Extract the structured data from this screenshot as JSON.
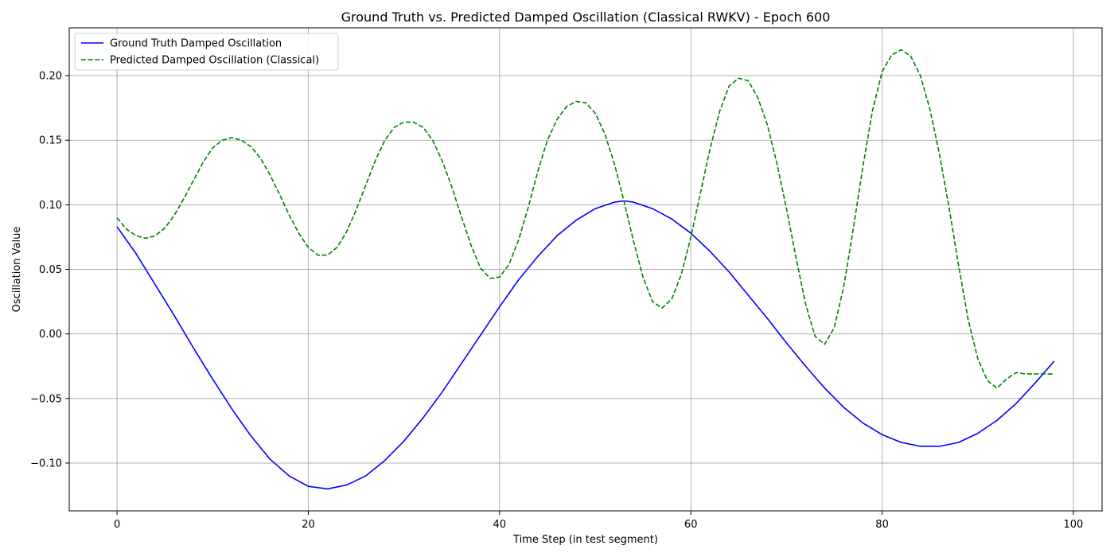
{
  "chart_data": {
    "type": "line",
    "title": "Ground Truth vs. Predicted Damped Oscillation (Classical RWKV) - Epoch 600",
    "xlabel": "Time Step (in test segment)",
    "ylabel": "Oscillation Value",
    "xlim": [
      -5,
      103
    ],
    "ylim": [
      -0.137,
      0.237
    ],
    "xticks": [
      0,
      20,
      40,
      60,
      80,
      100
    ],
    "xtick_labels": [
      "0",
      "20",
      "40",
      "60",
      "80",
      "100"
    ],
    "yticks": [
      -0.1,
      -0.05,
      0.0,
      0.05,
      0.1,
      0.15,
      0.2
    ],
    "ytick_labels": [
      "−0.10",
      "−0.05",
      "0.00",
      "0.05",
      "0.10",
      "0.15",
      "0.20"
    ],
    "grid": true,
    "legend_position": "top-left",
    "series": [
      {
        "name": "Ground Truth Damped Oscillation",
        "color": "#0000ff",
        "style": "solid",
        "x": [
          0,
          2,
          4,
          6,
          8,
          10,
          12,
          14,
          16,
          18,
          20,
          22,
          24,
          26,
          28,
          30,
          32,
          34,
          36,
          38,
          40,
          42,
          44,
          46,
          48,
          50,
          52,
          53,
          54,
          56,
          58,
          60,
          62,
          64,
          66,
          68,
          70,
          72,
          74,
          76,
          78,
          80,
          82,
          84,
          85,
          86,
          88,
          90,
          92,
          94,
          96,
          98
        ],
        "y": [
          0.083,
          0.062,
          0.038,
          0.014,
          -0.011,
          -0.035,
          -0.058,
          -0.079,
          -0.097,
          -0.11,
          -0.118,
          -0.12,
          -0.117,
          -0.11,
          -0.098,
          -0.083,
          -0.065,
          -0.045,
          -0.023,
          -0.001,
          0.021,
          0.042,
          0.06,
          0.076,
          0.088,
          0.097,
          0.102,
          0.103,
          0.102,
          0.097,
          0.089,
          0.078,
          0.064,
          0.048,
          0.03,
          0.012,
          -0.007,
          -0.025,
          -0.042,
          -0.057,
          -0.069,
          -0.078,
          -0.084,
          -0.087,
          -0.087,
          -0.087,
          -0.084,
          -0.077,
          -0.067,
          -0.054,
          -0.038,
          -0.021
        ]
      },
      {
        "name": "Predicted Damped Oscillation (Classical)",
        "color": "#008000",
        "style": "dashed",
        "x": [
          0,
          1,
          2,
          3,
          4,
          5,
          6,
          7,
          8,
          9,
          10,
          11,
          12,
          13,
          14,
          15,
          16,
          17,
          18,
          19,
          20,
          21,
          22,
          23,
          24,
          25,
          26,
          27,
          28,
          29,
          30,
          31,
          32,
          33,
          34,
          35,
          36,
          37,
          38,
          39,
          40,
          41,
          42,
          43,
          44,
          45,
          46,
          47,
          48,
          49,
          50,
          51,
          52,
          53,
          54,
          55,
          56,
          57,
          58,
          59,
          60,
          61,
          62,
          63,
          64,
          65,
          66,
          67,
          68,
          69,
          70,
          71,
          72,
          73,
          74,
          75,
          76,
          77,
          78,
          79,
          80,
          81,
          82,
          83,
          84,
          85,
          86,
          87,
          88,
          89,
          90,
          91,
          92,
          93,
          94,
          95,
          96,
          97,
          98
        ],
        "y": [
          0.09,
          0.081,
          0.076,
          0.074,
          0.076,
          0.082,
          0.092,
          0.105,
          0.119,
          0.133,
          0.144,
          0.15,
          0.152,
          0.15,
          0.145,
          0.136,
          0.123,
          0.108,
          0.092,
          0.078,
          0.067,
          0.061,
          0.061,
          0.067,
          0.079,
          0.096,
          0.115,
          0.134,
          0.15,
          0.16,
          0.164,
          0.164,
          0.16,
          0.15,
          0.134,
          0.114,
          0.091,
          0.069,
          0.051,
          0.043,
          0.044,
          0.054,
          0.073,
          0.098,
          0.126,
          0.15,
          0.166,
          0.176,
          0.18,
          0.179,
          0.171,
          0.155,
          0.132,
          0.103,
          0.072,
          0.044,
          0.025,
          0.02,
          0.027,
          0.046,
          0.075,
          0.109,
          0.143,
          0.172,
          0.192,
          0.198,
          0.196,
          0.183,
          0.162,
          0.132,
          0.097,
          0.059,
          0.023,
          -0.002,
          -0.008,
          0.005,
          0.037,
          0.082,
          0.13,
          0.173,
          0.203,
          0.216,
          0.22,
          0.215,
          0.2,
          0.174,
          0.139,
          0.098,
          0.053,
          0.011,
          -0.019,
          -0.036,
          -0.042,
          -0.035,
          -0.03,
          -0.031,
          -0.031,
          -0.031,
          -0.031
        ]
      }
    ]
  }
}
